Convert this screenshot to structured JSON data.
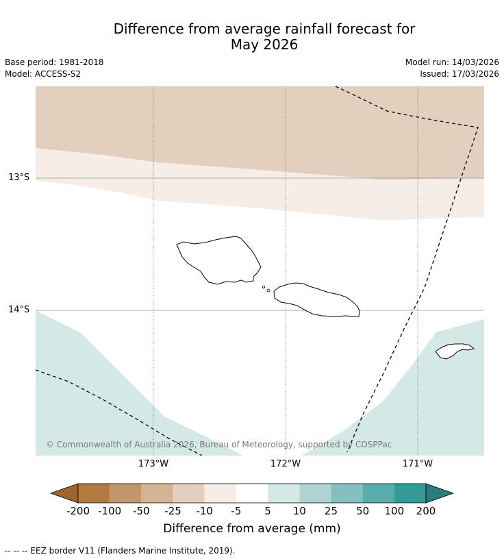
{
  "title": {
    "line1": "Difference from average rainfall forecast for",
    "line2": "May 2026"
  },
  "meta": {
    "base_period": "Base period: 1981-2018",
    "model": "Model: ACCESS-S2",
    "model_run": "Model run: 14/03/2026",
    "issued": "Issued: 17/03/2026"
  },
  "map": {
    "lat_labels": [
      "13°S",
      "14°S"
    ],
    "lon_labels": [
      "173°W",
      "172°W",
      "171°W"
    ],
    "copyright": "© Commonwealth of Australia 2026, Bureau of Meteorology, supported by COSPPac",
    "colors": {
      "dry_light": "#e2cfbe",
      "dry_faint": "#f5ede6",
      "wet_faint": "#d4e8e6",
      "neutral": "#ffffff"
    }
  },
  "colorbar": {
    "title": "Difference from average (mm)",
    "tick_labels": [
      "-200",
      "-100",
      "-50",
      "-25",
      "-10",
      "-5",
      "5",
      "10",
      "25",
      "50",
      "100",
      "200"
    ],
    "colors": [
      "#9c6530",
      "#b07a40",
      "#c2956b",
      "#d4b394",
      "#e2cfbe",
      "#f5ede6",
      "#ffffff",
      "#d4e8e6",
      "#afd3d1",
      "#83c0bf",
      "#5aacaa",
      "#349a98",
      "#2a7b79"
    ]
  },
  "footnote": "--  --  -- EEZ border V11 (Flanders Marine Institute, 2019)."
}
